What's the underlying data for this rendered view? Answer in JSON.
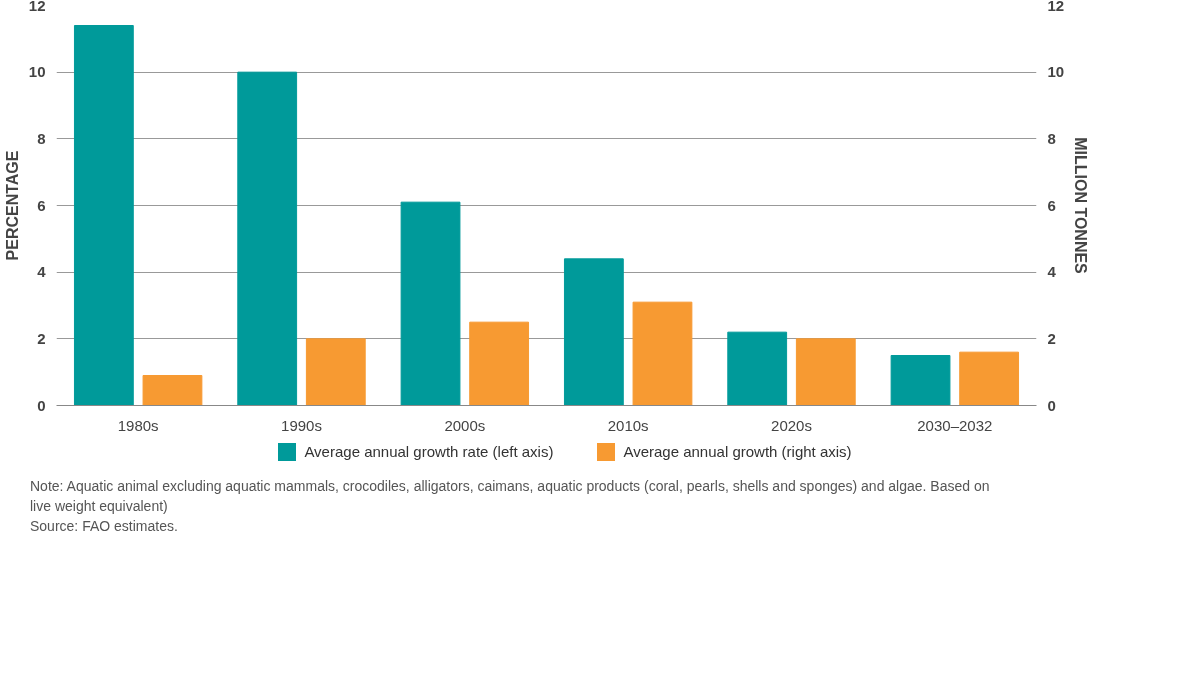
{
  "chart_data": {
    "type": "bar",
    "categories": [
      "1980s",
      "1990s",
      "2000s",
      "2010s",
      "2020s",
      "2030–2032"
    ],
    "ylabel": "PERCENTAGE",
    "y2label": "MILLION TONNES",
    "ylim": [
      0,
      12
    ],
    "yticks": [
      0,
      2,
      4,
      6,
      8,
      10,
      12
    ],
    "y2lim": [
      0,
      12
    ],
    "y2ticks": [
      0,
      2,
      4,
      6,
      8,
      10,
      12
    ],
    "series": [
      {
        "name": "Average annual growth rate (left axis)",
        "color": "#009a9a",
        "values": [
          11.4,
          10.0,
          6.1,
          4.4,
          2.2,
          1.5
        ]
      },
      {
        "name": "Average annual growth (right axis)",
        "color": "#f79a32",
        "values": [
          0.9,
          2.0,
          2.5,
          3.1,
          2.0,
          1.6
        ],
        "axis": "y2"
      }
    ],
    "grid": "y",
    "legend": "bottom",
    "annotations": [
      "Note: Aquatic animal excluding aquatic mammals, crocodiles, alligators, caimans, aquatic products (coral, pearls, shells and sponges) and algae. Based on live weight equivalent)",
      "Source: FAO estimates."
    ]
  }
}
